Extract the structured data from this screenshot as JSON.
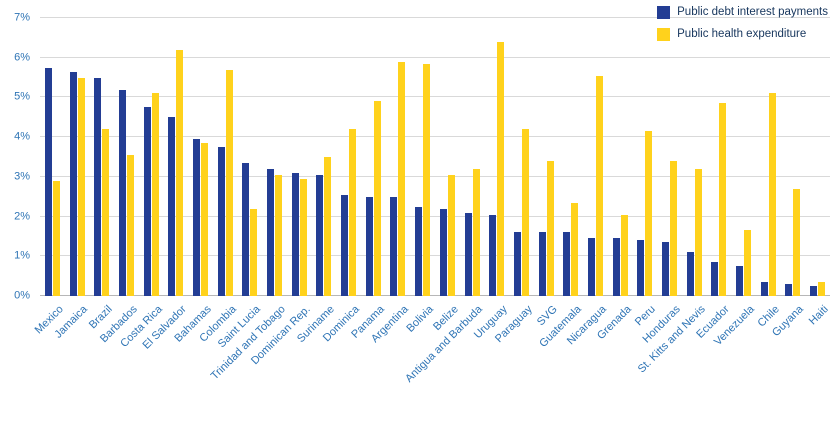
{
  "legend": {
    "items": [
      {
        "label": "Public debt interest payments"
      },
      {
        "label": "Public health expenditure"
      }
    ]
  },
  "colors": {
    "debt_series": "#233d94",
    "health_series": "#ffd21c",
    "axis_text": "#2e74b5",
    "legend_text": "#17365d",
    "gridline": "#d9d9d9"
  },
  "chart_data": {
    "type": "bar",
    "title": "",
    "xlabel": "",
    "ylabel": "",
    "ylim": [
      0,
      7
    ],
    "yticks": [
      "0%",
      "1%",
      "2%",
      "3%",
      "4%",
      "5%",
      "6%",
      "7%"
    ],
    "grid": true,
    "legend_position": "top-right",
    "categories": [
      "Mexico",
      "Jamaica",
      "Brazil",
      "Barbados",
      "Costa Rica",
      "El Salvador",
      "Bahamas",
      "Colombia",
      "Saint Lucia",
      "Trinidad and Tobago",
      "Dominican Rep.",
      "Suriname",
      "Dominica",
      "Panama",
      "Argentina",
      "Bolivia",
      "Belize",
      "Antigua and Barbuda",
      "Uruguay",
      "Paraguay",
      "SVG",
      "Guatemala",
      "Nicaragua",
      "Grenada",
      "Peru",
      "Honduras",
      "St. Kitts and Nevis",
      "Ecuador",
      "Venezuela",
      "Chile",
      "Guyana",
      "Haiti"
    ],
    "series": [
      {
        "name": "Public debt interest payments",
        "key": "debt",
        "color": "#233d94",
        "values": [
          5.75,
          5.65,
          5.5,
          5.2,
          4.75,
          4.5,
          3.95,
          3.75,
          3.35,
          3.2,
          3.1,
          3.05,
          2.55,
          2.5,
          2.5,
          2.25,
          2.2,
          2.1,
          2.05,
          1.6,
          1.6,
          1.6,
          1.45,
          1.45,
          1.4,
          1.35,
          1.1,
          0.85,
          0.75,
          0.35,
          0.3,
          0.25
        ]
      },
      {
        "name": "Public health expenditure",
        "key": "health",
        "color": "#ffd21c",
        "values": [
          2.9,
          5.5,
          4.2,
          3.55,
          5.1,
          6.2,
          3.85,
          5.7,
          2.2,
          3.05,
          2.95,
          3.5,
          4.2,
          4.9,
          5.9,
          5.85,
          3.05,
          3.2,
          6.4,
          4.2,
          3.4,
          2.35,
          5.55,
          2.05,
          4.15,
          3.4,
          3.2,
          4.85,
          1.65,
          5.1,
          2.7,
          0.35
        ]
      }
    ]
  }
}
